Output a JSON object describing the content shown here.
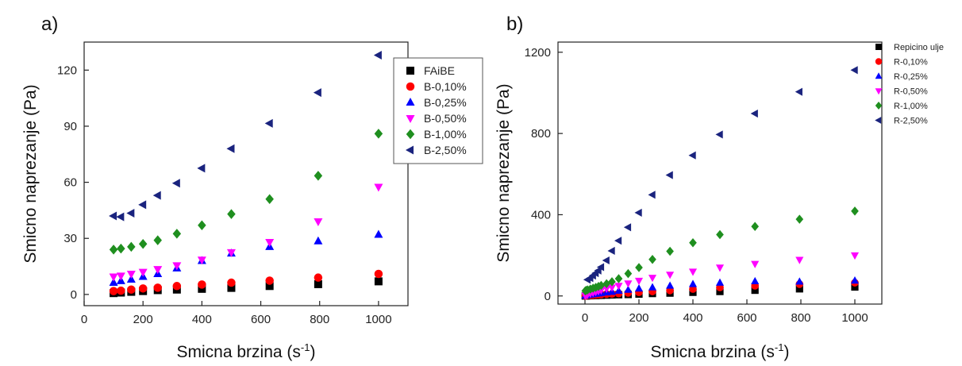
{
  "chart_data": [
    {
      "type": "scatter",
      "panel_label": "a)",
      "xlabel": "Smicna brzina (s",
      "xlabel_sup": "-1",
      "xlabel_end": ")",
      "ylabel": "Smicno naprezanje (Pa)",
      "xlim": [
        0,
        1100
      ],
      "ylim": [
        -6,
        135
      ],
      "xticks": [
        0,
        200,
        400,
        600,
        800,
        1000
      ],
      "yticks": [
        0,
        30,
        60,
        90,
        120
      ],
      "legend_position": "top-right",
      "legend_border": true,
      "series": [
        {
          "name": "FAiBE",
          "marker": "square",
          "color": "#000000",
          "x": [
            100,
            125,
            160,
            200,
            250,
            315,
            400,
            500,
            630,
            795,
            1000
          ],
          "y": [
            0.7,
            1.0,
            1.4,
            1.8,
            2.3,
            2.6,
            3.0,
            3.5,
            4.5,
            5.5,
            7.0
          ]
        },
        {
          "name": "B-0,10%",
          "marker": "circle",
          "color": "#ff0000",
          "x": [
            100,
            125,
            160,
            200,
            250,
            315,
            400,
            500,
            630,
            795,
            1000
          ],
          "y": [
            1.8,
            2.0,
            2.6,
            3.2,
            3.6,
            4.5,
            5.3,
            6.3,
            7.4,
            9.0,
            11.0
          ]
        },
        {
          "name": "B-0,25%",
          "marker": "triangle-up",
          "color": "#0000ff",
          "x": [
            100,
            125,
            160,
            200,
            250,
            315,
            400,
            500,
            630,
            795,
            1000
          ],
          "y": [
            6.3,
            7.2,
            8.0,
            9.5,
            11.0,
            14.0,
            18.0,
            22.0,
            25.5,
            28.5,
            32.0
          ]
        },
        {
          "name": "B-0,50%",
          "marker": "triangle-down",
          "color": "#ff00ff",
          "x": [
            100,
            125,
            160,
            200,
            250,
            315,
            400,
            500,
            630,
            795,
            1000
          ],
          "y": [
            9.5,
            10.0,
            11.0,
            12.0,
            13.5,
            15.5,
            18.5,
            22.5,
            28.0,
            39.0,
            57.5
          ]
        },
        {
          "name": "B-1,00%",
          "marker": "diamond",
          "color": "#1f8f1f",
          "x": [
            100,
            125,
            160,
            200,
            250,
            315,
            400,
            500,
            630,
            795,
            1000
          ],
          "y": [
            24.0,
            24.5,
            25.5,
            27.0,
            29.0,
            32.5,
            37.0,
            43.0,
            51.0,
            63.5,
            86.0
          ]
        },
        {
          "name": "B-2,50%",
          "marker": "triangle-left",
          "color": "#1a237e",
          "x": [
            100,
            125,
            160,
            200,
            250,
            315,
            400,
            500,
            630,
            795,
            1000
          ],
          "y": [
            42.0,
            41.5,
            43.5,
            48.0,
            53.0,
            59.5,
            67.5,
            78.0,
            91.5,
            108.0,
            128.0
          ]
        }
      ]
    },
    {
      "type": "scatter",
      "panel_label": "b)",
      "xlabel": "Smicna brzina (s",
      "xlabel_sup": "-1",
      "xlabel_end": ")",
      "ylabel": "Smicno naprezanje (Pa)",
      "xlim": [
        -100,
        1100
      ],
      "ylim": [
        -40,
        1250
      ],
      "xticks": [
        0,
        200,
        400,
        600,
        800,
        1000
      ],
      "yticks": [
        0,
        400,
        800,
        1200
      ],
      "legend_position": "top-right",
      "legend_border": false,
      "series": [
        {
          "name": "Repicino ulje",
          "marker": "square",
          "color": "#000000",
          "x": [
            1,
            5,
            10,
            20,
            30,
            40,
            50,
            60,
            80,
            100,
            125,
            160,
            200,
            250,
            315,
            400,
            500,
            630,
            795,
            1000
          ],
          "y": [
            0,
            0,
            1,
            1,
            2,
            2,
            3,
            3,
            4,
            5,
            6,
            7,
            9,
            12,
            14,
            18,
            22,
            28,
            35,
            44
          ]
        },
        {
          "name": "R-0,10%",
          "marker": "circle",
          "color": "#ff0000",
          "x": [
            1,
            5,
            10,
            20,
            30,
            40,
            50,
            60,
            80,
            100,
            125,
            160,
            200,
            250,
            315,
            400,
            500,
            630,
            795,
            1000
          ],
          "y": [
            0,
            1,
            2,
            3,
            4,
            5,
            6,
            7,
            9,
            10,
            12,
            15,
            18,
            22,
            27,
            34,
            42,
            50,
            58,
            65
          ]
        },
        {
          "name": "R-0,25%",
          "marker": "triangle-up",
          "color": "#0000ff",
          "x": [
            1,
            5,
            10,
            20,
            30,
            40,
            50,
            60,
            80,
            100,
            125,
            160,
            200,
            250,
            315,
            400,
            500,
            630,
            795,
            1000
          ],
          "y": [
            1,
            2,
            4,
            6,
            8,
            10,
            12,
            14,
            17,
            20,
            25,
            30,
            36,
            42,
            50,
            58,
            65,
            72,
            70,
            75
          ]
        },
        {
          "name": "R-0,50%",
          "marker": "triangle-down",
          "color": "#ff00ff",
          "x": [
            1,
            5,
            10,
            20,
            30,
            40,
            50,
            60,
            80,
            100,
            125,
            160,
            200,
            250,
            315,
            400,
            500,
            630,
            795,
            1000
          ],
          "y": [
            2,
            4,
            7,
            12,
            16,
            20,
            24,
            28,
            36,
            42,
            50,
            62,
            75,
            90,
            105,
            120,
            140,
            158,
            178,
            200
          ]
        },
        {
          "name": "R-1,00%",
          "marker": "diamond",
          "color": "#1f8f1f",
          "x": [
            1,
            5,
            10,
            20,
            30,
            40,
            50,
            60,
            80,
            100,
            125,
            160,
            200,
            250,
            315,
            400,
            500,
            630,
            795,
            1000
          ],
          "y": [
            25,
            28,
            30,
            34,
            38,
            42,
            47,
            52,
            60,
            70,
            85,
            110,
            140,
            180,
            220,
            262,
            302,
            342,
            378,
            418
          ]
        },
        {
          "name": "R-2,50%",
          "marker": "triangle-left",
          "color": "#1a237e",
          "x": [
            10,
            20,
            30,
            40,
            50,
            60,
            80,
            100,
            125,
            160,
            200,
            250,
            315,
            400,
            500,
            630,
            795,
            1000
          ],
          "y": [
            80,
            88,
            100,
            112,
            125,
            142,
            175,
            222,
            272,
            338,
            410,
            498,
            595,
            692,
            795,
            898,
            1005,
            1112
          ]
        }
      ]
    }
  ]
}
